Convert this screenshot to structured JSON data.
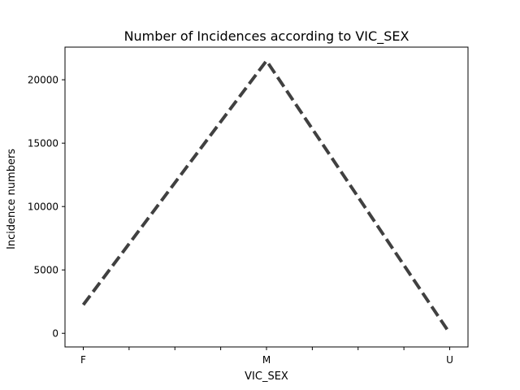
{
  "chart_data": {
    "type": "line",
    "title": "Number of Incidences according to VIC_SEX",
    "xlabel": "VIC_SEX",
    "ylabel": "Incidence numbers",
    "categories": [
      "F",
      "M",
      "U"
    ],
    "series": [
      {
        "values": [
          2250,
          21500,
          0
        ],
        "color": "#404040",
        "style": "dashed"
      }
    ],
    "yticks": [
      0,
      5000,
      10000,
      15000,
      20000
    ],
    "ylim": [
      -1075,
      22575
    ],
    "grid": false
  }
}
